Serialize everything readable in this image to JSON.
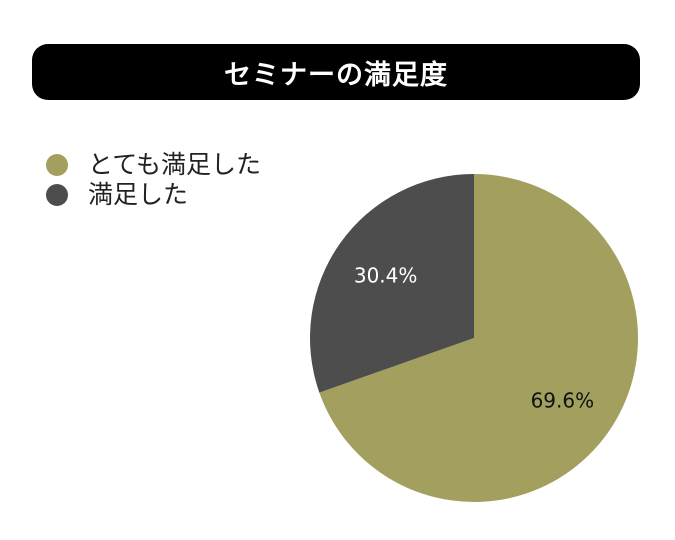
{
  "title": "セミナーの満足度",
  "colors": {
    "title_bg": "#000000",
    "title_text": "#ffffff"
  },
  "chart_data": {
    "type": "pie",
    "title": "セミナーの満足度",
    "legend_position": "top-left",
    "categories": [
      "とても満足した",
      "満足した"
    ],
    "values": [
      69.6,
      30.4
    ],
    "labels": [
      "69.6%",
      "30.4%"
    ],
    "colors": [
      "#a39f5e",
      "#4d4d4d"
    ],
    "label_colors": [
      "#111111",
      "#ffffff"
    ]
  }
}
